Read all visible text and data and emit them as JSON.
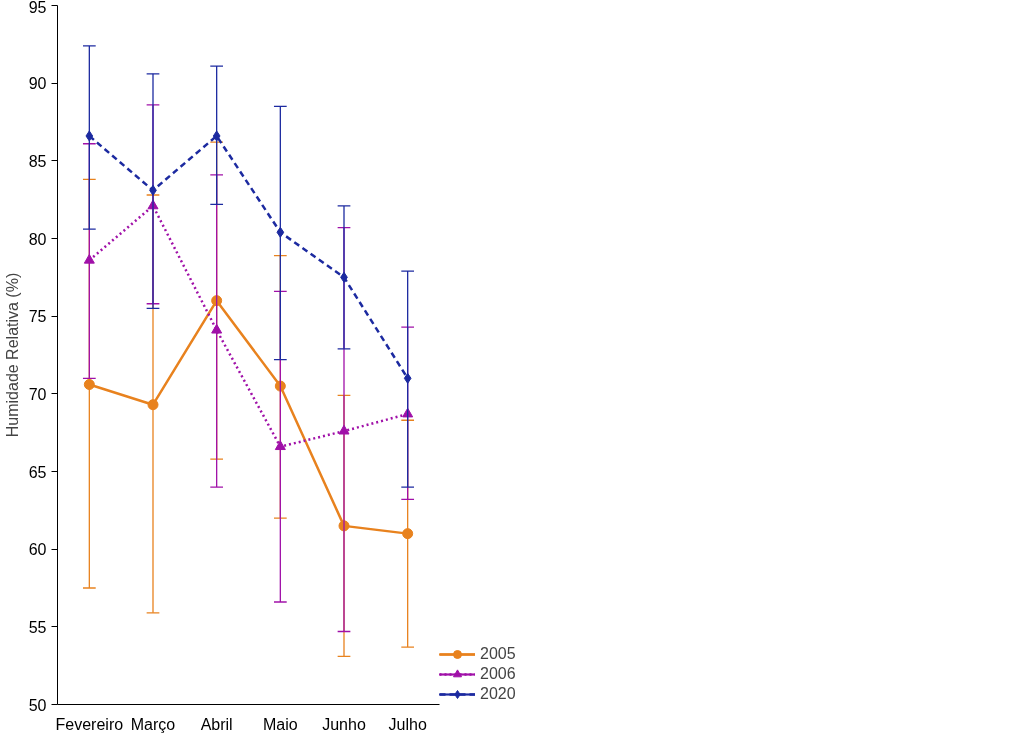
{
  "chart_data": {
    "type": "line",
    "ylabel": "Humidade Relativa (%)",
    "categories": [
      "Fevereiro",
      "Março",
      "Abril",
      "Maio",
      "Junho",
      "Julho"
    ],
    "ylim": [
      50,
      95
    ],
    "yticks": [
      50,
      55,
      60,
      65,
      70,
      75,
      80,
      85,
      90,
      95
    ],
    "grid": false,
    "legend": "bottom right",
    "series": [
      {
        "name": "2005",
        "color": "#e8821e",
        "marker": "circle",
        "line_style": "solid",
        "values": [
          70.6,
          69.3,
          76.0,
          70.5,
          61.5,
          61.0
        ],
        "errors": [
          [
            57.5,
            83.8
          ],
          [
            55.9,
            82.8
          ],
          [
            65.8,
            86.2
          ],
          [
            62.0,
            78.9
          ],
          [
            53.1,
            69.9
          ],
          [
            53.7,
            68.3
          ]
        ]
      },
      {
        "name": "2006",
        "color": "#a010a8",
        "marker": "triangle",
        "line_style": "dotted",
        "values": [
          78.6,
          82.1,
          74.1,
          66.6,
          67.6,
          68.7
        ],
        "errors": [
          [
            71.0,
            86.1
          ],
          [
            75.8,
            88.6
          ],
          [
            64.0,
            84.1
          ],
          [
            56.6,
            76.6
          ],
          [
            54.7,
            80.7
          ],
          [
            63.2,
            74.3
          ]
        ]
      },
      {
        "name": "2020",
        "color": "#1c2aa0",
        "marker": "diamond",
        "line_style": "dashed",
        "values": [
          86.6,
          83.1,
          86.6,
          80.4,
          77.5,
          71.0
        ],
        "errors": [
          [
            80.6,
            92.4
          ],
          [
            75.5,
            90.6
          ],
          [
            82.2,
            91.1
          ],
          [
            72.2,
            88.5
          ],
          [
            72.9,
            82.1
          ],
          [
            64.0,
            77.9
          ]
        ]
      }
    ]
  }
}
